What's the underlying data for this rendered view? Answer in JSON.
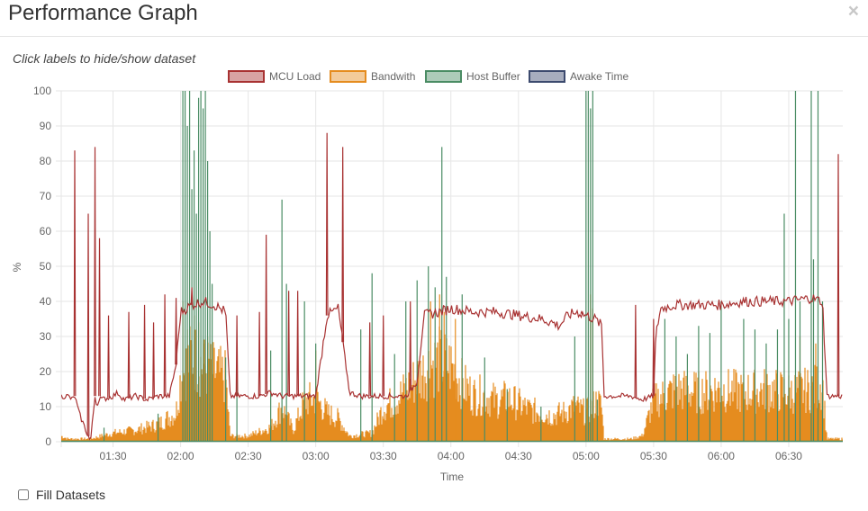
{
  "modal": {
    "title": "Performance Graph",
    "close_label": "×"
  },
  "hint": "Click labels to hide/show dataset",
  "fill_datasets": {
    "label": "Fill Datasets",
    "checked": false
  },
  "colors": {
    "mcu_load": "#a83232",
    "bandwith": "#e58c1f",
    "host_buffer": "#4a8c64",
    "awake_time": "#3c4a6e",
    "grid": "#e6e6e6"
  },
  "chart_data": {
    "type": "line",
    "title": "",
    "xlabel": "Time",
    "ylabel": "%",
    "ylim": [
      0,
      100
    ],
    "yticks": [
      0,
      10,
      20,
      30,
      40,
      50,
      60,
      70,
      80,
      90,
      100
    ],
    "xlim": [
      "01:07",
      "06:54"
    ],
    "xticks": [
      "01:30",
      "02:00",
      "02:30",
      "03:00",
      "03:30",
      "04:00",
      "04:30",
      "05:00",
      "05:30",
      "06:00",
      "06:30"
    ],
    "grid": true,
    "legend_position": "top",
    "series": [
      {
        "name": "MCU Load",
        "color": "#a83232",
        "points": [
          [
            "01:07",
            13
          ],
          [
            "01:10",
            13
          ],
          [
            "01:12",
            12
          ],
          [
            "01:13",
            13
          ],
          [
            "01:15",
            8
          ],
          [
            "01:20",
            0
          ],
          [
            "01:22",
            13
          ],
          [
            "01:23",
            10
          ],
          [
            "01:24",
            13
          ],
          [
            "01:25",
            12
          ],
          [
            "01:30",
            13
          ],
          [
            "01:32",
            14
          ],
          [
            "01:35",
            12
          ],
          [
            "01:40",
            13
          ],
          [
            "01:45",
            12
          ],
          [
            "01:50",
            13
          ],
          [
            "01:55",
            13
          ],
          [
            "01:58",
            22
          ],
          [
            "02:00",
            37
          ],
          [
            "02:05",
            39
          ],
          [
            "02:10",
            40
          ],
          [
            "02:15",
            39
          ],
          [
            "02:20",
            37
          ],
          [
            "02:22",
            13
          ],
          [
            "02:25",
            13
          ],
          [
            "02:30",
            13
          ],
          [
            "02:35",
            13
          ],
          [
            "02:40",
            14
          ],
          [
            "02:45",
            13
          ],
          [
            "02:50",
            13
          ],
          [
            "02:55",
            13
          ],
          [
            "03:00",
            13
          ],
          [
            "03:05",
            36
          ],
          [
            "03:10",
            38
          ],
          [
            "03:15",
            14
          ],
          [
            "03:20",
            13
          ],
          [
            "03:25",
            13
          ],
          [
            "03:30",
            13
          ],
          [
            "03:35",
            13
          ],
          [
            "03:40",
            13
          ],
          [
            "03:45",
            17
          ],
          [
            "03:48",
            36
          ],
          [
            "03:55",
            37
          ],
          [
            "04:00",
            38
          ],
          [
            "04:10",
            37
          ],
          [
            "04:20",
            37
          ],
          [
            "04:30",
            36
          ],
          [
            "04:40",
            35
          ],
          [
            "04:45",
            34
          ],
          [
            "04:48",
            33
          ],
          [
            "04:52",
            36
          ],
          [
            "04:56",
            37
          ],
          [
            "05:00",
            36
          ],
          [
            "05:04",
            35
          ],
          [
            "05:07",
            33
          ],
          [
            "05:08",
            13
          ],
          [
            "05:10",
            13
          ],
          [
            "05:15",
            13
          ],
          [
            "05:20",
            13
          ],
          [
            "05:25",
            12
          ],
          [
            "05:30",
            13
          ],
          [
            "05:31",
            30
          ],
          [
            "05:33",
            38
          ],
          [
            "05:40",
            39
          ],
          [
            "05:50",
            39
          ],
          [
            "06:00",
            39
          ],
          [
            "06:10",
            40
          ],
          [
            "06:20",
            40
          ],
          [
            "06:30",
            40
          ],
          [
            "06:40",
            41
          ],
          [
            "06:45",
            40
          ],
          [
            "06:47",
            13
          ],
          [
            "06:50",
            13
          ],
          [
            "06:54",
            13
          ]
        ],
        "spikes": [
          [
            "01:13",
            83
          ],
          [
            "01:19",
            65
          ],
          [
            "01:22",
            84
          ],
          [
            "01:24",
            58
          ],
          [
            "01:28",
            36
          ],
          [
            "01:37",
            37
          ],
          [
            "01:44",
            39
          ],
          [
            "01:48",
            34
          ],
          [
            "01:53",
            42
          ],
          [
            "01:58",
            41
          ],
          [
            "02:05",
            44
          ],
          [
            "02:25",
            36
          ],
          [
            "02:35",
            37
          ],
          [
            "02:38",
            59
          ],
          [
            "02:48",
            43
          ],
          [
            "02:52",
            43
          ],
          [
            "03:05",
            88
          ],
          [
            "03:12",
            84
          ],
          [
            "03:24",
            34
          ],
          [
            "03:30",
            36
          ],
          [
            "03:42",
            40
          ],
          [
            "04:58",
            37
          ],
          [
            "05:22",
            39
          ],
          [
            "05:30",
            35
          ],
          [
            "06:52",
            82
          ]
        ]
      },
      {
        "name": "Bandwith",
        "color": "#e58c1f",
        "envelope": [
          [
            "01:07",
            2
          ],
          [
            "01:10",
            1
          ],
          [
            "01:20",
            1
          ],
          [
            "01:30",
            3
          ],
          [
            "01:40",
            4
          ],
          [
            "01:50",
            6
          ],
          [
            "01:58",
            10
          ],
          [
            "02:00",
            22
          ],
          [
            "02:05",
            30
          ],
          [
            "02:10",
            26
          ],
          [
            "02:15",
            24
          ],
          [
            "02:20",
            22
          ],
          [
            "02:22",
            2
          ],
          [
            "02:30",
            2
          ],
          [
            "02:40",
            5
          ],
          [
            "02:45",
            12
          ],
          [
            "02:50",
            4
          ],
          [
            "02:55",
            14
          ],
          [
            "03:00",
            15
          ],
          [
            "03:05",
            10
          ],
          [
            "03:10",
            8
          ],
          [
            "03:15",
            2
          ],
          [
            "03:25",
            3
          ],
          [
            "03:30",
            12
          ],
          [
            "03:35",
            14
          ],
          [
            "03:40",
            18
          ],
          [
            "03:45",
            22
          ],
          [
            "03:50",
            26
          ],
          [
            "03:55",
            28
          ],
          [
            "04:00",
            26
          ],
          [
            "04:05",
            20
          ],
          [
            "04:10",
            16
          ],
          [
            "04:15",
            16
          ],
          [
            "04:20",
            14
          ],
          [
            "04:25",
            15
          ],
          [
            "04:30",
            13
          ],
          [
            "04:35",
            11
          ],
          [
            "04:40",
            10
          ],
          [
            "04:45",
            9
          ],
          [
            "04:50",
            10
          ],
          [
            "04:55",
            12
          ],
          [
            "05:00",
            10
          ],
          [
            "05:05",
            14
          ],
          [
            "05:07",
            12
          ],
          [
            "05:08",
            1
          ],
          [
            "05:20",
            1
          ],
          [
            "05:25",
            2
          ],
          [
            "05:30",
            14
          ],
          [
            "05:35",
            16
          ],
          [
            "05:40",
            18
          ],
          [
            "05:50",
            17
          ],
          [
            "06:00",
            18
          ],
          [
            "06:10",
            17
          ],
          [
            "06:20",
            18
          ],
          [
            "06:30",
            17
          ],
          [
            "06:40",
            18
          ],
          [
            "06:45",
            20
          ],
          [
            "06:47",
            1
          ],
          [
            "06:54",
            1
          ]
        ],
        "spikes": [
          [
            "02:01",
            40
          ],
          [
            "02:03",
            32
          ],
          [
            "02:06",
            36
          ],
          [
            "02:08",
            34
          ],
          [
            "02:10",
            28
          ],
          [
            "02:12",
            30
          ],
          [
            "03:00",
            26
          ],
          [
            "03:51",
            40
          ],
          [
            "03:55",
            42
          ],
          [
            "03:57",
            37
          ],
          [
            "04:02",
            35
          ],
          [
            "05:02",
            42
          ],
          [
            "05:03",
            38
          ],
          [
            "06:35",
            30
          ],
          [
            "06:42",
            28
          ]
        ]
      },
      {
        "name": "Host Buffer",
        "color": "#4a8c64",
        "baseline": 0,
        "spikes": [
          [
            "01:26",
            4
          ],
          [
            "01:50",
            8
          ],
          [
            "02:01",
            100
          ],
          [
            "02:02",
            100
          ],
          [
            "02:03",
            90
          ],
          [
            "02:04",
            100
          ],
          [
            "02:05",
            72
          ],
          [
            "02:06",
            83
          ],
          [
            "02:07",
            65
          ],
          [
            "02:08",
            98
          ],
          [
            "02:09",
            100
          ],
          [
            "02:10",
            95
          ],
          [
            "02:11",
            100
          ],
          [
            "02:12",
            80
          ],
          [
            "02:13",
            60
          ],
          [
            "02:14",
            45
          ],
          [
            "02:20",
            24
          ],
          [
            "02:25",
            20
          ],
          [
            "02:40",
            26
          ],
          [
            "02:45",
            69
          ],
          [
            "02:47",
            45
          ],
          [
            "02:55",
            40
          ],
          [
            "03:00",
            28
          ],
          [
            "03:20",
            32
          ],
          [
            "03:25",
            48
          ],
          [
            "03:35",
            25
          ],
          [
            "03:40",
            40
          ],
          [
            "03:45",
            46
          ],
          [
            "03:50",
            50
          ],
          [
            "03:53",
            44
          ],
          [
            "03:56",
            84
          ],
          [
            "03:58",
            47
          ],
          [
            "04:05",
            42
          ],
          [
            "04:15",
            24
          ],
          [
            "04:25",
            15
          ],
          [
            "04:40",
            10
          ],
          [
            "04:55",
            30
          ],
          [
            "05:00",
            100
          ],
          [
            "05:01",
            100
          ],
          [
            "05:02",
            95
          ],
          [
            "05:03",
            100
          ],
          [
            "05:05",
            12
          ],
          [
            "05:35",
            35
          ],
          [
            "05:40",
            30
          ],
          [
            "05:45",
            25
          ],
          [
            "05:50",
            33
          ],
          [
            "05:55",
            31
          ],
          [
            "06:00",
            40
          ],
          [
            "06:10",
            35
          ],
          [
            "06:15",
            32
          ],
          [
            "06:20",
            28
          ],
          [
            "06:25",
            32
          ],
          [
            "06:28",
            65
          ],
          [
            "06:30",
            35
          ],
          [
            "06:33",
            100
          ],
          [
            "06:35",
            40
          ],
          [
            "06:40",
            100
          ],
          [
            "06:41",
            52
          ],
          [
            "06:43",
            100
          ],
          [
            "06:45",
            40
          ]
        ]
      },
      {
        "name": "Awake Time",
        "color": "#3c4a6e",
        "points": []
      }
    ]
  }
}
